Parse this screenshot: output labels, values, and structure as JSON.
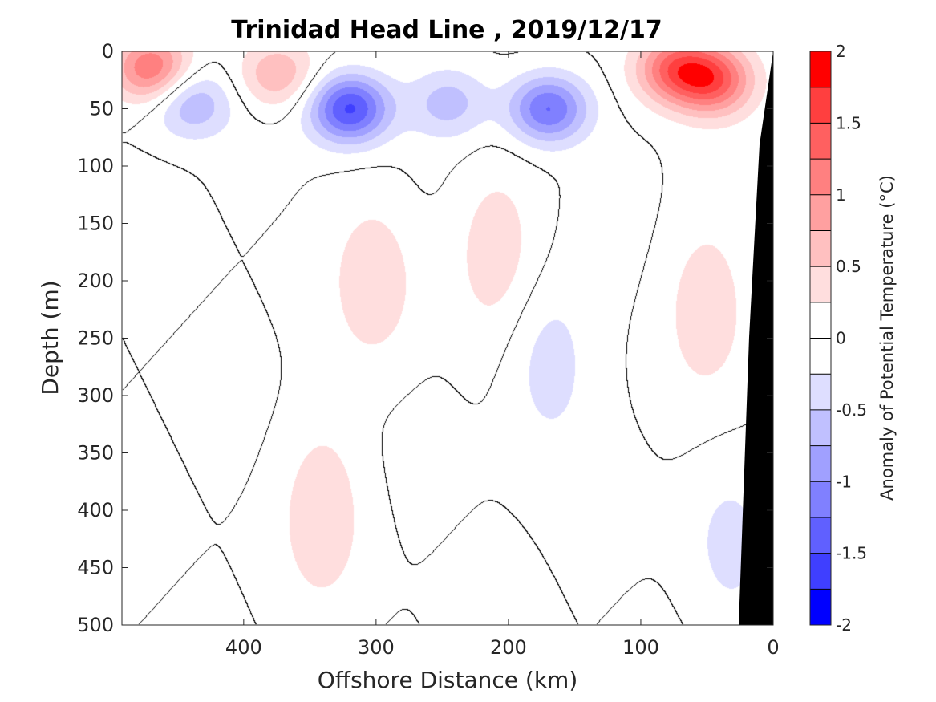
{
  "chart_data": {
    "type": "heatmap",
    "subtype": "filled-contour section",
    "title": "Trinidad Head Line , 2019/12/17",
    "xlabel": "Offshore Distance (km)",
    "ylabel": "Depth (m)",
    "colorbar_label": "Anomaly of Potential Temperature (°C)",
    "xlim": [
      492,
      0
    ],
    "x_reversed": true,
    "ylim": [
      0,
      500
    ],
    "y_reversed": true,
    "x_ticks": [
      400,
      300,
      200,
      100,
      0
    ],
    "y_ticks": [
      0,
      50,
      100,
      150,
      200,
      250,
      300,
      350,
      400,
      450,
      500
    ],
    "colorbar_ticks": [
      2,
      1.5,
      1,
      0.5,
      0,
      -0.5,
      -1,
      -1.5,
      -2
    ],
    "colorbar_range": [
      -2,
      2
    ],
    "contour_step": 0.25,
    "colormap": [
      "#0000ff",
      "#3f3fff",
      "#6060ff",
      "#8080ff",
      "#a0a0ff",
      "#c0c0ff",
      "#dedeff",
      "#ffffff",
      "#ffffff",
      "#ffdede",
      "#ffc0c0",
      "#ffa0a0",
      "#ff8080",
      "#ff6060",
      "#ff3f3f",
      "#ff0000"
    ],
    "zero_contour_color": "#000000",
    "bathymetry_color": "#000000",
    "grid": false,
    "features": [
      {
        "sign": "warm",
        "x": 470,
        "y": 15,
        "peak": 1.25
      },
      {
        "sign": "cold",
        "x": 440,
        "y": 45,
        "peak": -0.75
      },
      {
        "sign": "warm",
        "x": 375,
        "y": 20,
        "peak": 0.75
      },
      {
        "sign": "cold",
        "x": 320,
        "y": 50,
        "peak": -1.55
      },
      {
        "sign": "cold",
        "x": 245,
        "y": 45,
        "peak": -0.6
      },
      {
        "sign": "cold",
        "x": 170,
        "y": 50,
        "peak": -1.3
      },
      {
        "sign": "warm",
        "x": 75,
        "y": 15,
        "peak": 1.2
      },
      {
        "sign": "warm",
        "x": 45,
        "y": 25,
        "peak": 1.3
      },
      {
        "sign": "warm",
        "x": 300,
        "y": 200,
        "peak": 0.4
      },
      {
        "sign": "warm",
        "x": 340,
        "y": 400,
        "peak": 0.4
      },
      {
        "sign": "warm",
        "x": 210,
        "y": 170,
        "peak": 0.4
      },
      {
        "sign": "cold",
        "x": 170,
        "y": 270,
        "peak": -0.4
      },
      {
        "sign": "warm",
        "x": 50,
        "y": 220,
        "peak": 0.4
      },
      {
        "sign": "cold",
        "x": 35,
        "y": 430,
        "peak": -0.3
      }
    ]
  }
}
